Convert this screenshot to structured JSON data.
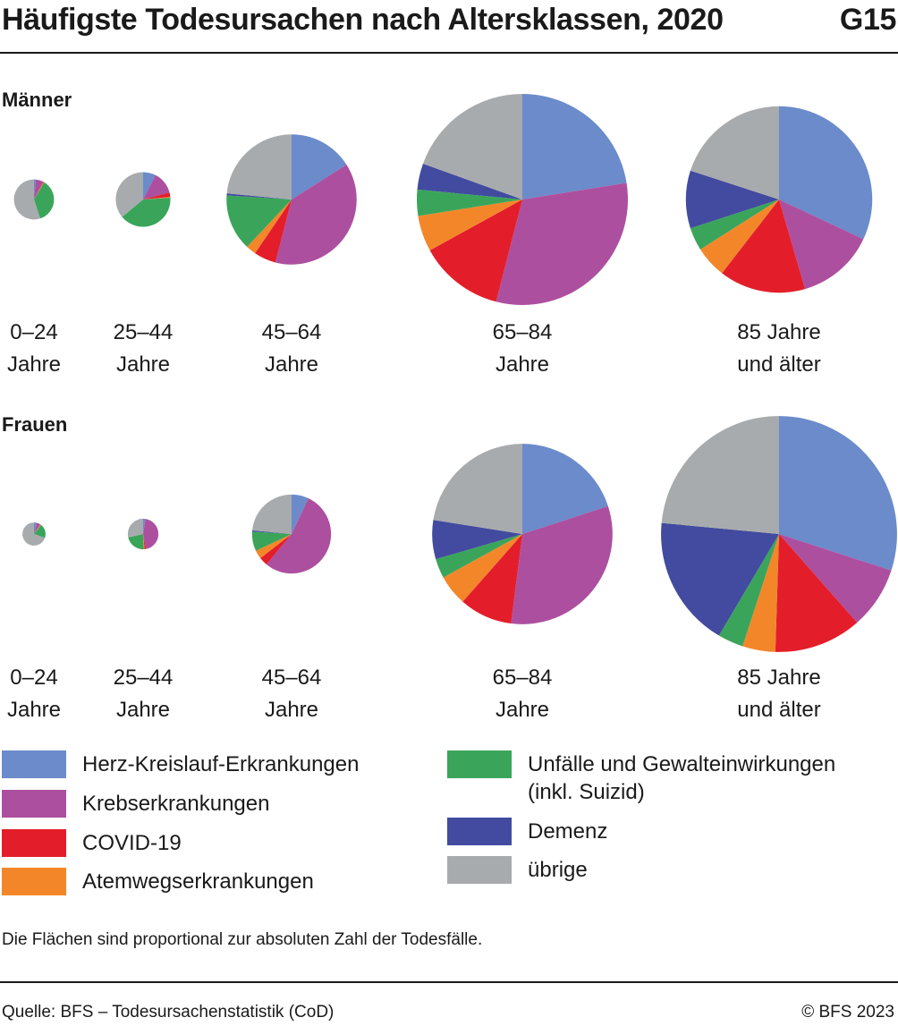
{
  "title": "Häufigste Todesursachen nach Altersklassen, 2020",
  "figure_code": "G15",
  "note": "Die Flächen sind proportional zur absoluten Zahl der Todesfälle.",
  "source": "Quelle: BFS – Todesursachenstatistik (CoD)",
  "copyright": "© BFS 2023",
  "chart_data": {
    "type": "pie",
    "categories": [
      "Herz-Kreislauf-Erkrankungen",
      "Krebserkrankungen",
      "COVID-19",
      "Atemwegserkrankungen",
      "Unfälle und Gewalteinwirkungen (inkl. Suizid)",
      "Demenz",
      "übrige"
    ],
    "colors": [
      "#6b8bca",
      "#ad4f9f",
      "#e31e2a",
      "#f4862a",
      "#3aa55a",
      "#424b9f",
      "#a8abad"
    ],
    "legend": {
      "left": [
        {
          "label": "Herz-Kreislauf-Erkrankungen",
          "color": "#6b8bca"
        },
        {
          "label": "Krebserkrankungen",
          "color": "#ad4f9f"
        },
        {
          "label": "COVID-19",
          "color": "#e31e2a"
        },
        {
          "label": "Atemwegserkrankungen",
          "color": "#f4862a"
        }
      ],
      "right": [
        {
          "label": "Unfälle und Gewalteinwirkungen",
          "label2": "(inkl. Suizid)",
          "color": "#3aa55a"
        },
        {
          "label": "Demenz",
          "color": "#424b9f"
        },
        {
          "label": "übrige",
          "color": "#a8abad"
        }
      ]
    },
    "groups": [
      {
        "label": "Männer",
        "pies": [
          {
            "age": "0–24",
            "age2": "Jahre",
            "total_rel": 0.036,
            "shares_pct": [
              1.5,
              6.0,
              0.5,
              0.5,
              36.5,
              0.0,
              55.0
            ]
          },
          {
            "age": "25–44",
            "age2": "Jahre",
            "total_rel": 0.067,
            "shares_pct": [
              7.5,
              13.5,
              2.5,
              0.5,
              40.0,
              0.0,
              36.0
            ]
          },
          {
            "age": "45–64",
            "age2": "Jahre",
            "total_rel": 0.38,
            "shares_pct": [
              16.0,
              38.0,
              5.5,
              2.5,
              14.0,
              0.5,
              23.5
            ]
          },
          {
            "age": "65–84",
            "age2": "Jahre",
            "total_rel": 1.0,
            "shares_pct": [
              22.5,
              31.5,
              13.0,
              5.5,
              4.0,
              4.0,
              19.5
            ]
          },
          {
            "age": "85 Jahre",
            "age2": "und älter",
            "total_rel": 0.78,
            "shares_pct": [
              32.0,
              13.5,
              15.0,
              5.5,
              4.0,
              10.0,
              20.0
            ]
          }
        ]
      },
      {
        "label": "Frauen",
        "pies": [
          {
            "age": "0–24",
            "age2": "Jahre",
            "total_rel": 0.012,
            "shares_pct": [
              4.0,
              5.0,
              0.5,
              1.0,
              20.0,
              0.0,
              69.5
            ]
          },
          {
            "age": "25–44",
            "age2": "Jahre",
            "total_rel": 0.021,
            "shares_pct": [
              2.5,
              44.5,
              1.5,
              1.0,
              22.0,
              0.0,
              28.5
            ]
          },
          {
            "age": "45–64",
            "age2": "Jahre",
            "total_rel": 0.14,
            "shares_pct": [
              7.0,
              54.0,
              3.5,
              3.5,
              8.0,
              0.5,
              23.5
            ]
          },
          {
            "age": "65–84",
            "age2": "Jahre",
            "total_rel": 0.73,
            "shares_pct": [
              20.0,
              32.0,
              9.5,
              5.5,
              3.5,
              7.0,
              22.5
            ]
          },
          {
            "age": "85 Jahre",
            "age2": "und älter",
            "total_rel": 1.25,
            "shares_pct": [
              30.0,
              8.5,
              12.0,
              4.5,
              3.5,
              18.0,
              23.5
            ]
          }
        ]
      }
    ]
  }
}
